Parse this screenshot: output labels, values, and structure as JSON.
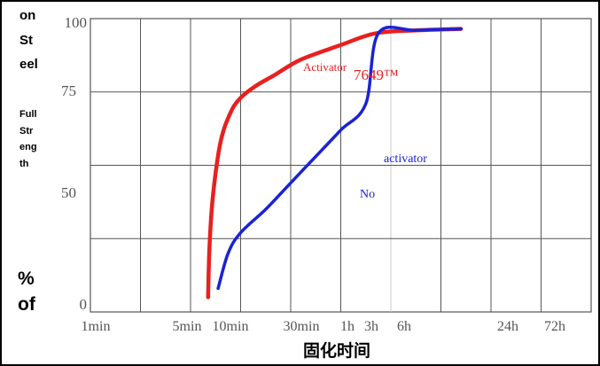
{
  "chart_data": {
    "type": "line",
    "xlabel": "固化时间",
    "ylabel_lines": [
      "on",
      "St",
      "eel"
    ],
    "ylabel_sub_lines": [
      "Full",
      "Str",
      "eng",
      "th"
    ],
    "ylabel_bottom_lines": [
      "%",
      "of"
    ],
    "x_ticks": [
      "1min",
      "5min",
      "10min",
      "30min",
      "1h",
      "3h",
      "6h",
      "24h",
      "72h"
    ],
    "y_ticks": [
      "100",
      "75",
      "50",
      "0"
    ],
    "ylim": [
      0,
      100
    ],
    "grid": true,
    "colors": {
      "activator": "#e8201f",
      "no_activator": "#1a22d6",
      "grid": "#555555",
      "text": "#555555"
    },
    "annotations": {
      "activator_prefix": "Activator",
      "activator_product": "7649™",
      "no_activator_1": "activator",
      "no_activator_2": "No"
    },
    "series": [
      {
        "name": "Activator 7649™",
        "x": [
          2.35,
          2.38,
          2.45,
          2.6,
          2.8,
          3.0,
          3.3,
          3.7,
          4.2,
          5.0,
          5.7,
          6.5,
          7.4
        ],
        "y": [
          5,
          23,
          40,
          58,
          68,
          73,
          77,
          81,
          86,
          91,
          95,
          96,
          96.5
        ]
      },
      {
        "name": "No activator",
        "x": [
          2.55,
          2.75,
          3.0,
          3.5,
          4.0,
          4.5,
          5.0,
          5.5,
          5.75,
          6.5,
          7.4
        ],
        "y": [
          8,
          20,
          27,
          35,
          44,
          53,
          62,
          71,
          95,
          96,
          96.5
        ]
      }
    ]
  }
}
